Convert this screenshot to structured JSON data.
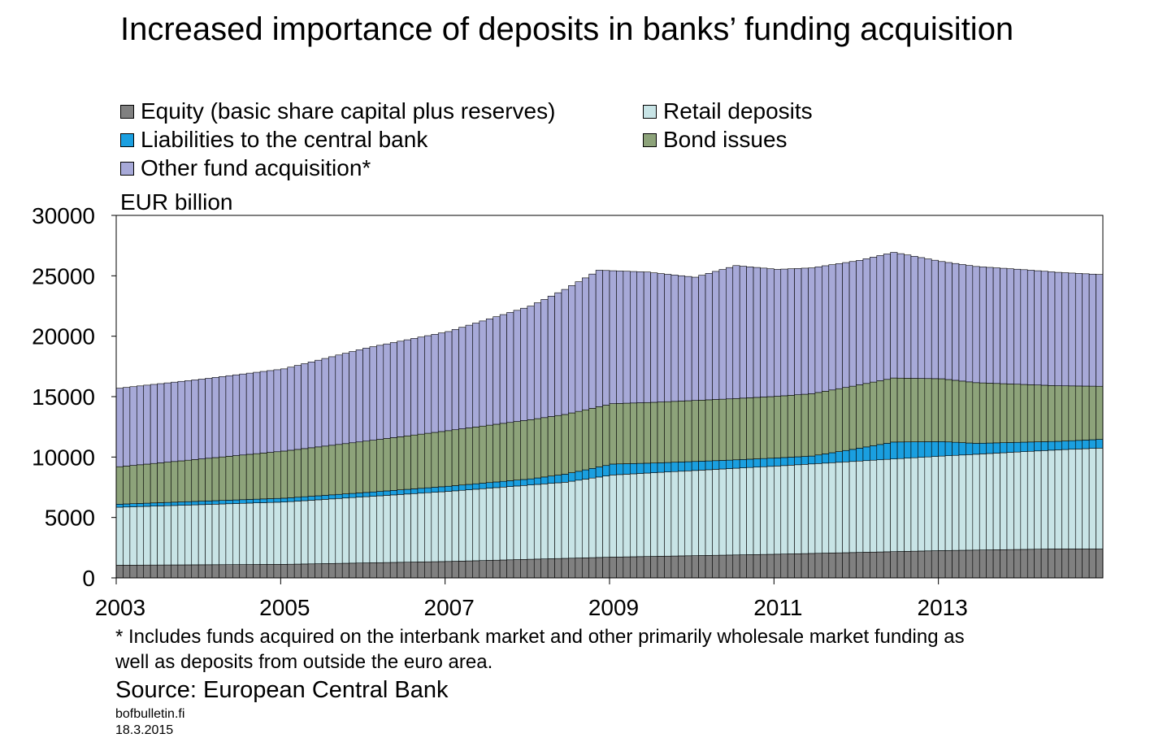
{
  "title": "Increased importance of deposits in banks’ funding acquisition",
  "unit_label": "EUR billion",
  "footnote": "* Includes funds acquired on the interbank market and other primarily wholesale market funding as well as deposits from outside the euro area.",
  "source": "Source: European Central Bank",
  "site": "bofbulletin.fi",
  "date": "18.3.2015",
  "chart_data": {
    "type": "bar",
    "stacked": true,
    "frequency": "monthly",
    "first_month": "2003-01",
    "last_month": "2014-12",
    "ylim": [
      0,
      30000
    ],
    "yticks": [
      0,
      5000,
      10000,
      15000,
      20000,
      25000,
      30000
    ],
    "xticks": [
      "2003",
      "2005",
      "2007",
      "2009",
      "2011",
      "2013"
    ],
    "grid": false,
    "legend_position": "top",
    "series": [
      {
        "name": "Equity (basic share capital plus reserves)",
        "color": "#808080",
        "anchors": [
          [
            "2003-01",
            1050
          ],
          [
            "2005-01",
            1120
          ],
          [
            "2007-01",
            1360
          ],
          [
            "2009-01",
            1720
          ],
          [
            "2011-01",
            1960
          ],
          [
            "2013-01",
            2260
          ],
          [
            "2014-06",
            2400
          ],
          [
            "2014-12",
            2390
          ]
        ]
      },
      {
        "name": "Retail deposits",
        "color": "#c8e4e6",
        "anchors": [
          [
            "2003-01",
            4800
          ],
          [
            "2005-01",
            5160
          ],
          [
            "2007-01",
            5800
          ],
          [
            "2008-06",
            6300
          ],
          [
            "2009-01",
            6800
          ],
          [
            "2011-01",
            7300
          ],
          [
            "2012-01",
            7560
          ],
          [
            "2013-01",
            7820
          ],
          [
            "2014-06",
            8200
          ],
          [
            "2014-12",
            8350
          ]
        ]
      },
      {
        "name": "Liabilities to the central bank",
        "color": "#1a9fe0",
        "anchors": [
          [
            "2003-01",
            250
          ],
          [
            "2006-01",
            350
          ],
          [
            "2008-01",
            500
          ],
          [
            "2008-10",
            800
          ],
          [
            "2009-01",
            900
          ],
          [
            "2009-07",
            800
          ],
          [
            "2010-06",
            700
          ],
          [
            "2011-06",
            650
          ],
          [
            "2011-12",
            1000
          ],
          [
            "2012-03",
            1200
          ],
          [
            "2012-06",
            1400
          ],
          [
            "2013-01",
            1200
          ],
          [
            "2013-06",
            900
          ],
          [
            "2014-06",
            700
          ],
          [
            "2014-12",
            720
          ]
        ]
      },
      {
        "name": "Bond issues",
        "color": "#8da37a",
        "anchors": [
          [
            "2003-01",
            3100
          ],
          [
            "2005-01",
            3900
          ],
          [
            "2007-01",
            4600
          ],
          [
            "2008-01",
            4900
          ],
          [
            "2009-01",
            5000
          ],
          [
            "2011-01",
            5100
          ],
          [
            "2012-06",
            5300
          ],
          [
            "2013-01",
            5200
          ],
          [
            "2014-06",
            4600
          ],
          [
            "2014-12",
            4400
          ]
        ]
      },
      {
        "name": "Other fund acquisition*",
        "color": "#a7a9d8",
        "anchors": [
          [
            "2003-01",
            6500
          ],
          [
            "2004-01",
            6600
          ],
          [
            "2005-01",
            6800
          ],
          [
            "2006-01",
            7700
          ],
          [
            "2007-01",
            8200
          ],
          [
            "2008-01",
            9400
          ],
          [
            "2008-11",
            11300
          ],
          [
            "2009-01",
            11000
          ],
          [
            "2009-06",
            10800
          ],
          [
            "2010-01",
            10200
          ],
          [
            "2010-07",
            11000
          ],
          [
            "2011-01",
            10500
          ],
          [
            "2012-01",
            10300
          ],
          [
            "2012-06",
            10400
          ],
          [
            "2013-01",
            9700
          ],
          [
            "2014-01",
            9500
          ],
          [
            "2014-12",
            9250
          ]
        ]
      }
    ]
  }
}
